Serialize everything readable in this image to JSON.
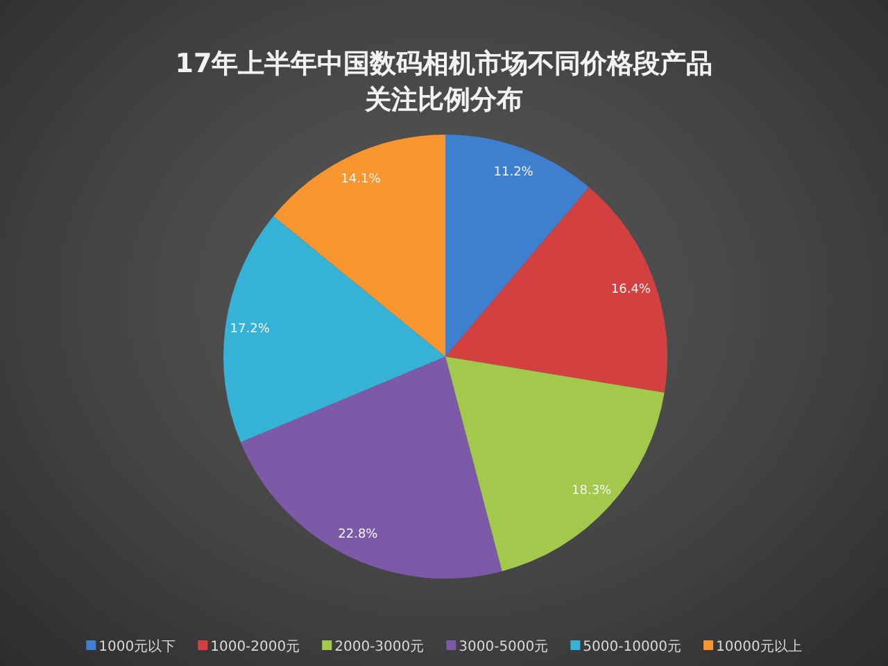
{
  "chart_data": {
    "type": "pie",
    "title": "17年上半年中国数码相机市场不同价格段产品关注比例分布",
    "categories": [
      "1000元以下",
      "1000-2000元",
      "2000-3000元",
      "3000-5000元",
      "5000-10000元",
      "10000元以上"
    ],
    "values": [
      11.2,
      16.4,
      18.3,
      22.8,
      17.2,
      14.1
    ],
    "colors": [
      "#3f7fd0",
      "#d24040",
      "#a2c94c",
      "#7d5aa8",
      "#36b2d6",
      "#f7952f"
    ],
    "value_labels": [
      "11.2%",
      "16.4%",
      "18.3%",
      "22.8%",
      "17.2%",
      "14.1%"
    ],
    "legend": "bottom"
  }
}
